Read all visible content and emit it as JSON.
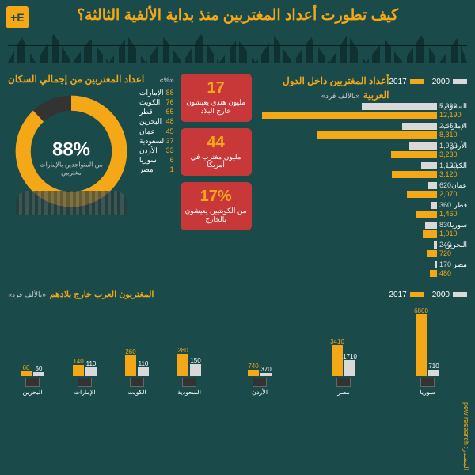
{
  "title": "كيف تطورت أعداد المغتربين منذ بداية الألفية الثالثة؟",
  "logo": "E+",
  "colors": {
    "bg": "#1a4a4a",
    "accent": "#f4a818",
    "year2000": "#d9d9d9",
    "year2017": "#f4a818",
    "statBg": "#c93838"
  },
  "hbar": {
    "title": "أعداد المغتربين داخل الدول العربية",
    "unit": "«بالألف فرد»",
    "legend": [
      {
        "label": "2000",
        "color": "#d9d9d9"
      },
      {
        "label": "2017",
        "color": "#f4a818"
      }
    ],
    "max": 12500,
    "countries": [
      {
        "name": "السعودية",
        "v2000": 5260,
        "v2017": 12190
      },
      {
        "name": "الإمارات",
        "v2000": 2450,
        "v2017": 8310
      },
      {
        "name": "الأردن",
        "v2000": 1930,
        "v2017": 3230
      },
      {
        "name": "الكويت",
        "v2000": 1130,
        "v2017": 3120
      },
      {
        "name": "عمان",
        "v2000": 620,
        "v2017": 2070
      },
      {
        "name": "قطر",
        "v2000": 360,
        "v2017": 1460
      },
      {
        "name": "سوريا",
        "v2000": 830,
        "v2017": 1010
      },
      {
        "name": "البحرين",
        "v2000": 240,
        "v2017": 720
      },
      {
        "name": "مصر",
        "v2000": 170,
        "v2017": 480
      }
    ]
  },
  "stats": [
    {
      "num": "17",
      "txt": "مليون هندي يعيشون خارج البلاد"
    },
    {
      "num": "44",
      "txt": "مليون مغترب في أمريكا"
    },
    {
      "num": "17%",
      "txt": "من الكويتيين يعيشون بالخارج"
    }
  ],
  "donut": {
    "title": "اعداد المغتربين من إجمالي السكان",
    "unit": "«%»",
    "center_pct": "88%",
    "center_txt": "من المتواجدين بالإمارات مغتربين",
    "items": [
      {
        "label": "الإمارات",
        "val": 88
      },
      {
        "label": "الكويت",
        "val": 76
      },
      {
        "label": "قطر",
        "val": 65
      },
      {
        "label": "البحرين",
        "val": 48
      },
      {
        "label": "عمان",
        "val": 45
      },
      {
        "label": "السعودية",
        "val": 37
      },
      {
        "label": "الأردن",
        "val": 33
      },
      {
        "label": "سوريا",
        "val": 6
      },
      {
        "label": "مصر",
        "val": 1
      }
    ]
  },
  "vbar": {
    "title": "المغتربون العرب خارج بلادهم",
    "unit": "«بالألف فرد»",
    "left_max": 7000,
    "right_max": 800,
    "left": [
      {
        "name": "سوريا",
        "v2000": 710,
        "v2017": 6860
      },
      {
        "name": "مصر",
        "v2000": 1710,
        "v2017": 3410
      },
      {
        "name": "الأردن",
        "v2000": 370,
        "v2017": 740
      }
    ],
    "right": [
      {
        "name": "السعودية",
        "v2000": 150,
        "v2017": 280
      },
      {
        "name": "الكويت",
        "v2000": 110,
        "v2017": 260
      },
      {
        "name": "الإمارات",
        "v2000": 110,
        "v2017": 140
      },
      {
        "name": "البحرين",
        "v2000": 50,
        "v2017": 60
      }
    ]
  },
  "source": "المصدر: pew research"
}
